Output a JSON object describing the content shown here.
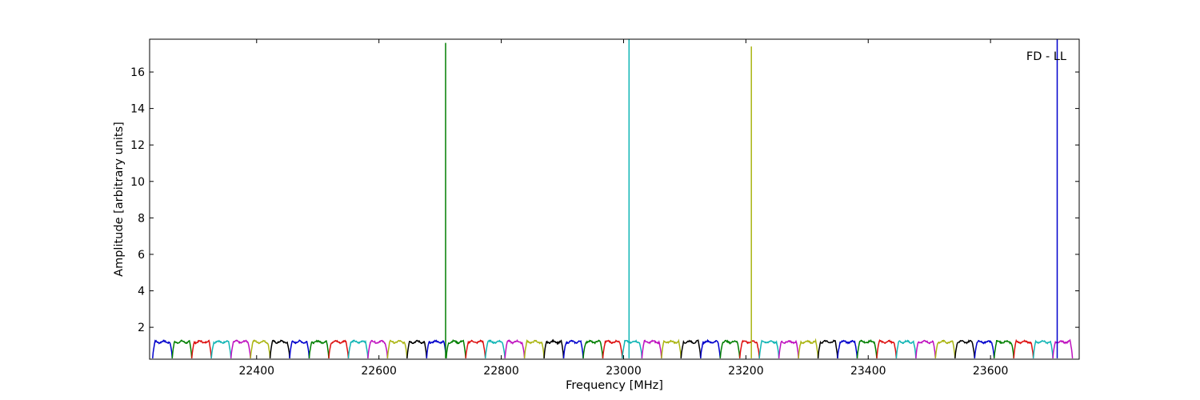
{
  "chart_data": {
    "type": "line",
    "title": "",
    "xlabel": "Frequency [MHz]",
    "ylabel": "Amplitude [arbitrary units]",
    "annotation": "FD - LL",
    "legend": "none",
    "grid": false,
    "xlim": [
      22225,
      23745
    ],
    "ylim": [
      0.25,
      17.8
    ],
    "xticks": [
      22400,
      22600,
      22800,
      23000,
      23200,
      23400,
      23600
    ],
    "xtick_labels": [
      "22400",
      "22600",
      "22800",
      "23000",
      "23200",
      "23400",
      "23600"
    ],
    "yticks": [
      2,
      4,
      6,
      8,
      10,
      12,
      14,
      16
    ],
    "ytick_labels": [
      "2",
      "4",
      "6",
      "8",
      "10",
      "12",
      "14",
      "16"
    ],
    "channel_width_mhz": 32,
    "channel_amplitude": 1.2,
    "baseline_amplitude": 0.3,
    "colors": [
      "#0000cc",
      "#007f00",
      "#dd1111",
      "#11b5b5",
      "#bf11bf",
      "#aab511",
      "#000000"
    ],
    "channel_starts": [
      22230,
      22262,
      22294,
      22326,
      22358,
      22390,
      22422,
      22454,
      22486,
      22518,
      22550,
      22582,
      22614,
      22646,
      22678,
      22710,
      22742,
      22774,
      22806,
      22838,
      22870,
      22902,
      22934,
      22966,
      22998,
      23030,
      23062,
      23094,
      23126,
      23158,
      23190,
      23222,
      23254,
      23286,
      23318,
      23350,
      23382,
      23414,
      23446,
      23478,
      23510,
      23542,
      23574,
      23606,
      23638,
      23670,
      23702
    ],
    "spikes": [
      {
        "x": 22709,
        "y": 17.6,
        "color": "#007f00"
      },
      {
        "x": 23009,
        "y": 17.8,
        "color": "#11b5b5"
      },
      {
        "x": 23209,
        "y": 17.4,
        "color": "#aab511"
      },
      {
        "x": 23709,
        "y": 17.8,
        "color": "#0000cc"
      }
    ]
  }
}
